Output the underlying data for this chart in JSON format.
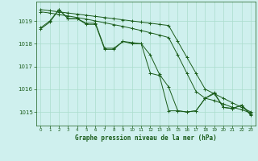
{
  "title": "Graphe pression niveau de la mer (hPa)",
  "background_color": "#cff0ee",
  "grid_color": "#aaddcc",
  "line_color": "#1a5c1a",
  "x_ticks": [
    0,
    1,
    2,
    3,
    4,
    5,
    6,
    7,
    8,
    9,
    10,
    11,
    12,
    13,
    14,
    15,
    16,
    17,
    18,
    19,
    20,
    21,
    22,
    23
  ],
  "ylim": [
    1014.4,
    1019.85
  ],
  "yticks": [
    1015,
    1016,
    1017,
    1018,
    1019
  ],
  "series": [
    [
      1018.65,
      1018.95,
      1019.5,
      1019.1,
      1019.1,
      1018.85,
      1018.85,
      1017.75,
      1017.75,
      1018.1,
      1018.05,
      1018.0,
      1017.5,
      1016.65,
      1016.1,
      1015.05,
      1015.0,
      1015.05,
      1015.6,
      1015.8,
      1015.2,
      1015.15,
      1015.3,
      1014.85
    ],
    [
      1019.5,
      1019.45,
      1019.4,
      1019.35,
      1019.3,
      1019.25,
      1019.2,
      1019.15,
      1019.1,
      1019.05,
      1019.0,
      1018.95,
      1018.9,
      1018.85,
      1018.8,
      1018.1,
      1017.4,
      1016.7,
      1016.0,
      1015.8,
      1015.6,
      1015.4,
      1015.2,
      1015.0
    ],
    [
      1019.4,
      1019.35,
      1019.28,
      1019.22,
      1019.15,
      1019.08,
      1019.0,
      1018.92,
      1018.84,
      1018.76,
      1018.67,
      1018.58,
      1018.48,
      1018.38,
      1018.27,
      1017.5,
      1016.7,
      1015.9,
      1015.6,
      1015.5,
      1015.35,
      1015.2,
      1015.1,
      1014.95
    ],
    [
      1018.7,
      1019.0,
      1019.5,
      1019.1,
      1019.1,
      1018.9,
      1018.9,
      1017.8,
      1017.8,
      1018.1,
      1018.0,
      1018.0,
      1016.7,
      1016.6,
      1015.05,
      1015.05,
      1015.0,
      1015.05,
      1015.6,
      1015.85,
      1015.2,
      1015.15,
      1015.3,
      1014.9
    ]
  ]
}
